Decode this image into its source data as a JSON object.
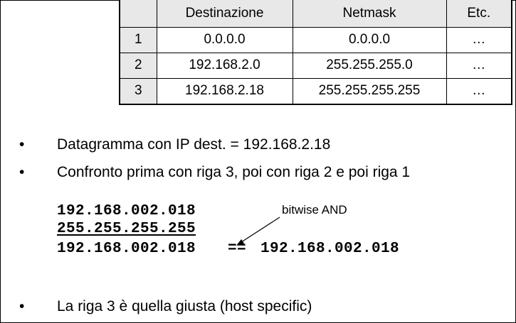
{
  "table": {
    "headers": [
      "",
      "Destinazione",
      "Netmask",
      "Etc."
    ],
    "rows": [
      {
        "n": "1",
        "dest": "0.0.0.0",
        "mask": "0.0.0.0",
        "etc": "…"
      },
      {
        "n": "2",
        "dest": "192.168.2.0",
        "mask": "255.255.255.0",
        "etc": "…"
      },
      {
        "n": "3",
        "dest": "192.168.2.18",
        "mask": "255.255.255.255",
        "etc": "…"
      }
    ]
  },
  "bullets": [
    "Datagramma con IP dest. = 192.168.2.18",
    "Confronto prima con riga 3, poi con riga 2 e poi riga 1",
    "La riga 3 è quella giusta (host specific)"
  ],
  "bullet_symbol": "•",
  "computation": {
    "line1": "192.168.002.018",
    "line2": "255.255.255.255",
    "line3_left": "192.168.002.018",
    "equals": "==",
    "line3_right": "192.168.002.018",
    "annotation": "bitwise AND"
  }
}
